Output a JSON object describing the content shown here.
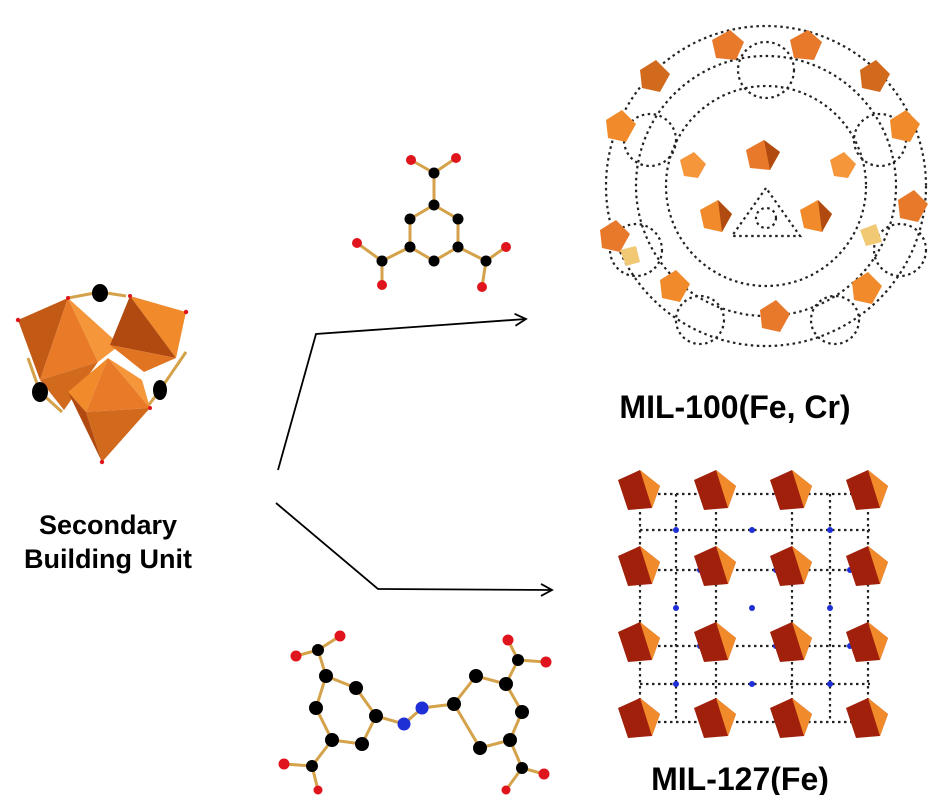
{
  "labels": {
    "sbu_line1": "Secondary",
    "sbu_line2": "Building Unit",
    "mil100": "MIL-100(Fe, Cr)",
    "mil127": "MIL-127(Fe)"
  },
  "colors": {
    "octahedron_light": "#f08a2a",
    "octahedron_dark": "#b04a10",
    "octahedron_red": "#a0200c",
    "carbon": "#000000",
    "oxygen": "#e0141c",
    "nitrogen": "#1e2fd6",
    "bond": "#d4a24a",
    "arrow": "#000000"
  }
}
